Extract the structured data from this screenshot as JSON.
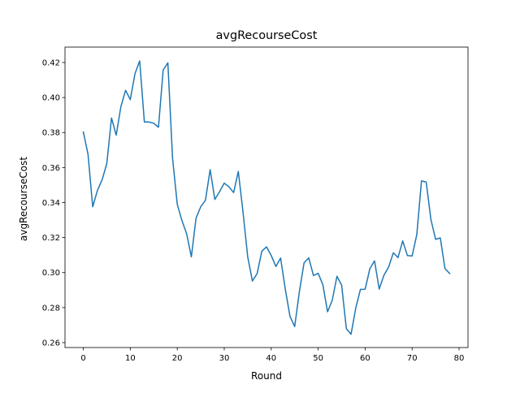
{
  "chart_data": {
    "type": "line",
    "title": "avgRecourseCost",
    "xlabel": "Round",
    "ylabel": "avgRecourseCost",
    "xlim": [
      -3.9,
      81.9
    ],
    "ylim": [
      0.2572,
      0.4288
    ],
    "x_ticks": [
      0,
      10,
      20,
      30,
      40,
      50,
      60,
      70,
      80
    ],
    "y_ticks": [
      0.26,
      0.28,
      0.3,
      0.32,
      0.34,
      0.36,
      0.38,
      0.4,
      0.42
    ],
    "x_tick_labels": [
      "0",
      "10",
      "20",
      "30",
      "40",
      "50",
      "60",
      "70",
      "80"
    ],
    "y_tick_labels": [
      "0.26",
      "0.28",
      "0.30",
      "0.32",
      "0.34",
      "0.36",
      "0.38",
      "0.40",
      "0.42"
    ],
    "grid": false,
    "series": [
      {
        "color": "#1f77b4",
        "x": [
          0,
          1,
          2,
          3,
          4,
          5,
          6,
          7,
          8,
          9,
          10,
          11,
          12,
          13,
          14,
          15,
          16,
          17,
          18,
          19,
          20,
          21,
          22,
          23,
          24,
          25,
          26,
          27,
          28,
          29,
          30,
          31,
          32,
          33,
          34,
          35,
          36,
          37,
          38,
          39,
          40,
          41,
          42,
          43,
          44,
          45,
          46,
          47,
          48,
          49,
          50,
          51,
          52,
          53,
          54,
          55,
          56,
          57,
          58,
          59,
          60,
          61,
          62,
          63,
          64,
          65,
          66,
          67,
          68,
          69,
          70,
          71,
          72,
          73,
          74,
          75,
          76,
          77,
          78
        ],
        "values": [
          0.3803,
          0.3676,
          0.3376,
          0.3469,
          0.353,
          0.3623,
          0.3883,
          0.3785,
          0.3948,
          0.4041,
          0.3988,
          0.4136,
          0.4209,
          0.386,
          0.386,
          0.3853,
          0.383,
          0.4157,
          0.4198,
          0.3653,
          0.339,
          0.3297,
          0.3221,
          0.309,
          0.3311,
          0.3376,
          0.3413,
          0.3588,
          0.3418,
          0.3462,
          0.3511,
          0.349,
          0.3457,
          0.3578,
          0.3345,
          0.309,
          0.2952,
          0.2994,
          0.3122,
          0.3147,
          0.3098,
          0.3035,
          0.3083,
          0.2906,
          0.275,
          0.2692,
          0.2891,
          0.3056,
          0.3084,
          0.2983,
          0.2996,
          0.2931,
          0.2776,
          0.2842,
          0.2979,
          0.2928,
          0.268,
          0.2648,
          0.2797,
          0.2904,
          0.2905,
          0.3022,
          0.3067,
          0.2906,
          0.2985,
          0.3032,
          0.3113,
          0.3086,
          0.3181,
          0.3097,
          0.3095,
          0.3217,
          0.3524,
          0.3517,
          0.3304,
          0.319,
          0.3198,
          0.3023,
          0.2995
        ]
      }
    ]
  }
}
